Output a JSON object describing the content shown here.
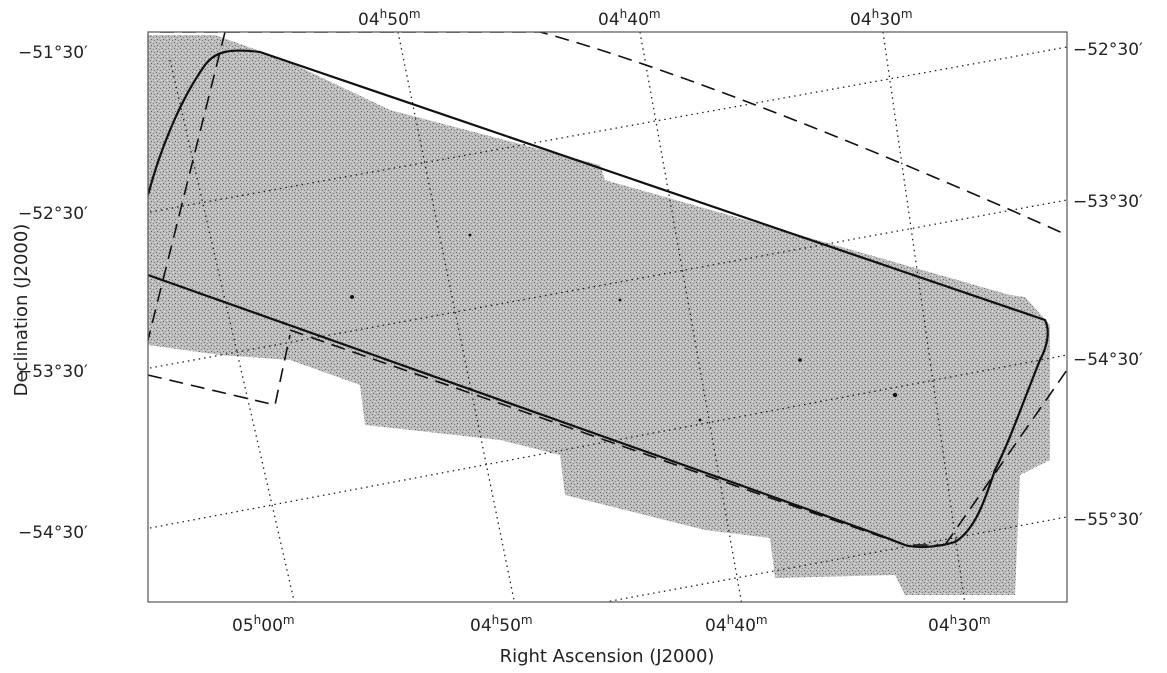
{
  "figure": {
    "xlabel": "Right Ascension (J2000)",
    "ylabel": "Declination (J2000)",
    "ra_labels_bottom": [
      {
        "h": "05",
        "m": "00"
      },
      {
        "h": "04",
        "m": "50"
      },
      {
        "h": "04",
        "m": "40"
      },
      {
        "h": "04",
        "m": "30"
      }
    ],
    "ra_labels_top": [
      {
        "h": "04",
        "m": "50"
      },
      {
        "h": "04",
        "m": "40"
      },
      {
        "h": "04",
        "m": "30"
      }
    ],
    "dec_labels_left": [
      "−51°30′",
      "−52°30′",
      "−53°30′",
      "−54°30′"
    ],
    "dec_labels_right": [
      "−52°30′",
      "−53°30′",
      "−54°30′",
      "−55°30′"
    ],
    "colors": {
      "frame": "#555555",
      "survey_fill": "#b9b9b9",
      "outline": "#111111",
      "grid": "#222222"
    }
  }
}
